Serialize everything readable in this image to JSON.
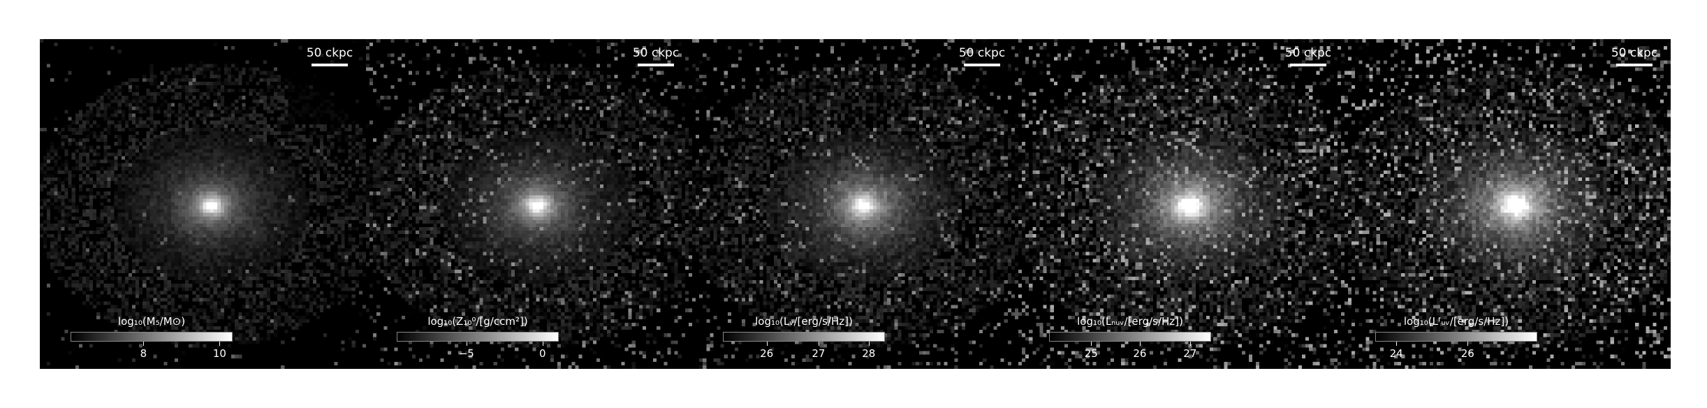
{
  "scale_label": "50 ckpc",
  "panels": [
    {
      "colorbar_label": "log₁₀(M₅/M⊙)",
      "ticks": [
        "8",
        "10"
      ],
      "tick_pos": [
        0.45,
        0.92
      ],
      "noise": 0.1,
      "core": 0.95,
      "halo": 0.45
    },
    {
      "colorbar_label": "log₁₀(Z₁₀⁰/[g/ccm²])",
      "ticks": [
        "−5",
        "0"
      ],
      "tick_pos": [
        0.43,
        0.9
      ],
      "noise": 0.35,
      "core": 0.95,
      "halo": 0.5
    },
    {
      "colorbar_label": "log₁₀(Lᵥ/[erg/s/Hz])",
      "ticks": [
        "26",
        "27",
        "28"
      ],
      "tick_pos": [
        0.27,
        0.59,
        0.9
      ],
      "noise": 0.35,
      "core": 0.85,
      "halo": 0.6
    },
    {
      "colorbar_label": "log₁₀(Lₙᵤᵥ/[erg/s/Hz])",
      "ticks": [
        "25",
        "26",
        "27"
      ],
      "tick_pos": [
        0.26,
        0.56,
        0.87
      ],
      "noise": 0.55,
      "core": 0.9,
      "halo": 0.75
    },
    {
      "colorbar_label": "log₁₀(Lᶠᵤᵥ/[erg/s/Hz])",
      "ticks": [
        "24",
        "26"
      ],
      "tick_pos": [
        0.13,
        0.57
      ],
      "noise": 0.6,
      "core": 0.9,
      "halo": 0.8
    }
  ]
}
